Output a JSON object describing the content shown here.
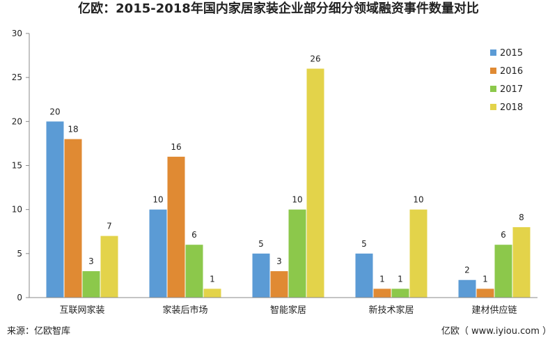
{
  "chart_data": {
    "type": "bar",
    "title": "亿欧：2015-2018年国内家居家装企业部分细分领域融资事件数量对比",
    "categories": [
      "互联网家装",
      "家装后市场",
      "智能家居",
      "新技术家居",
      "建材供应链"
    ],
    "series": [
      {
        "name": "2015",
        "color": "#5b9bd5",
        "values": [
          20,
          10,
          5,
          5,
          2
        ]
      },
      {
        "name": "2016",
        "color": "#e08a33",
        "values": [
          18,
          16,
          3,
          1,
          1
        ]
      },
      {
        "name": "2017",
        "color": "#8cc84b",
        "values": [
          3,
          6,
          10,
          1,
          6
        ]
      },
      {
        "name": "2018",
        "color": "#e3d34a",
        "values": [
          7,
          1,
          26,
          10,
          8
        ]
      }
    ],
    "ylim": [
      0,
      30
    ],
    "yticks": [
      0,
      5,
      10,
      15,
      20,
      25,
      30
    ],
    "grid": false,
    "legend_position": "top-right"
  },
  "source": "来源：亿欧智库",
  "credit": "亿欧（ www.iyiou.com ）"
}
